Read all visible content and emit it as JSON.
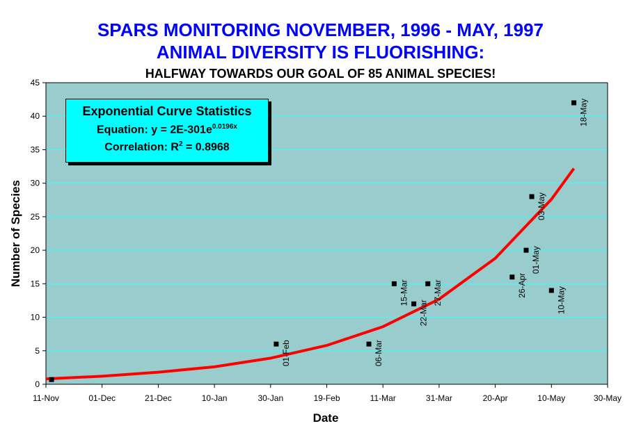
{
  "header": {
    "title_line1": "SPARS MONITORING NOVEMBER, 1996 - MAY, 1997",
    "title_line2": "ANIMAL DIVERSITY IS FLUORISHING:",
    "subtitle": "HALFWAY TOWARDS OUR GOAL OF 85 ANIMAL SPECIES!"
  },
  "stats_box": {
    "heading": "Exponential Curve Statistics",
    "equation_prefix": "Equation: y = 2E-301e",
    "equation_exponent": "0.0196x",
    "correlation_prefix": "Correlation: R",
    "correlation_exponent": "2",
    "correlation_suffix": " = 0.8968"
  },
  "colors": {
    "plot_background": "#99cccc",
    "gridline": "#33ffff",
    "curve": "#ff0000",
    "marker": "#000000",
    "title": "#0000ff",
    "stats_box": "#00ffff"
  },
  "chart_data": {
    "type": "scatter",
    "title": "SPARS MONITORING NOVEMBER, 1996 - MAY, 1997",
    "xlabel": "Date",
    "ylabel": "Number of Species",
    "x_tick_labels": [
      "11-Nov",
      "01-Dec",
      "21-Dec",
      "10-Jan",
      "30-Jan",
      "19-Feb",
      "11-Mar",
      "31-Mar",
      "20-Apr",
      "10-May",
      "30-May"
    ],
    "y_ticks": [
      0,
      5,
      10,
      15,
      20,
      25,
      30,
      35,
      40,
      45
    ],
    "xlim": [
      "1996-11-11",
      "1997-05-30"
    ],
    "ylim": [
      0,
      45
    ],
    "grid": true,
    "points": [
      {
        "x": "1996-11-13",
        "y": 0.7,
        "label": ""
      },
      {
        "x": "1997-02-01",
        "y": 6,
        "label": "01-Feb"
      },
      {
        "x": "1997-03-06",
        "y": 6,
        "label": "06-Mar"
      },
      {
        "x": "1997-03-15",
        "y": 15,
        "label": "15-Mar"
      },
      {
        "x": "1997-03-22",
        "y": 12,
        "label": "22-Mar"
      },
      {
        "x": "1997-03-27",
        "y": 15,
        "label": "27-Mar"
      },
      {
        "x": "1997-04-26",
        "y": 16,
        "label": "26-Apr"
      },
      {
        "x": "1997-05-01",
        "y": 20,
        "label": "01-May"
      },
      {
        "x": "1997-05-03",
        "y": 28,
        "label": "03-May"
      },
      {
        "x": "1997-05-10",
        "y": 14,
        "label": "10-May"
      },
      {
        "x": "1997-05-18",
        "y": 42,
        "label": "18-May"
      }
    ],
    "trendline": {
      "type": "exponential",
      "x": [
        "1996-11-11",
        "1996-12-01",
        "1996-12-21",
        "1997-01-10",
        "1997-01-30",
        "1997-02-19",
        "1997-03-11",
        "1997-03-31",
        "1997-04-20",
        "1997-05-10",
        "1997-05-18"
      ],
      "y": [
        0.8,
        1.2,
        1.8,
        2.6,
        3.9,
        5.8,
        8.6,
        12.7,
        18.8,
        27.6,
        32.2
      ]
    }
  }
}
